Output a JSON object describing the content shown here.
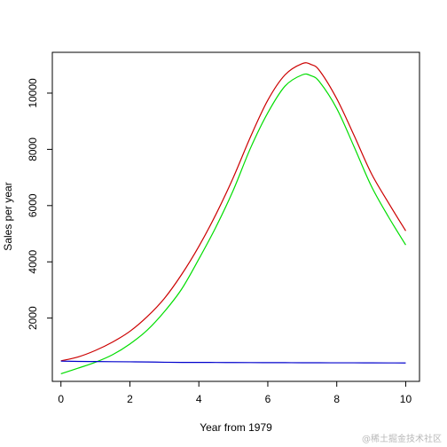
{
  "chart_data": {
    "type": "line",
    "title": "",
    "xlabel": "Year from 1979",
    "ylabel": "Sales per year",
    "xlim": [
      -0.25,
      10.4
    ],
    "ylim": [
      -250,
      11450
    ],
    "x_ticks": [
      0,
      2,
      4,
      6,
      8,
      10
    ],
    "x_tick_labels": [
      "0",
      "2",
      "4",
      "6",
      "8",
      "10"
    ],
    "y_ticks": [
      2000,
      4000,
      6000,
      8000,
      10000
    ],
    "y_tick_labels": [
      "2000",
      "4000",
      "6000",
      "8000",
      "10000"
    ],
    "grid": false,
    "legend": "none",
    "x": [
      0,
      0.5,
      1,
      1.5,
      2,
      2.5,
      3,
      3.5,
      4,
      4.5,
      5,
      5.5,
      6,
      6.5,
      7,
      7.25,
      7.5,
      8,
      8.5,
      9,
      9.5,
      10
    ],
    "series": [
      {
        "color": "#cc0000",
        "values": [
          480,
          620,
          850,
          1150,
          1530,
          2050,
          2700,
          3550,
          4550,
          5700,
          7000,
          8450,
          9750,
          10650,
          11050,
          11020,
          10800,
          9800,
          8500,
          7150,
          6100,
          5100
        ]
      },
      {
        "color": "#00dd00",
        "values": [
          20,
          220,
          430,
          700,
          1080,
          1570,
          2230,
          3030,
          4100,
          5250,
          6550,
          8050,
          9300,
          10250,
          10650,
          10620,
          10400,
          9450,
          8100,
          6700,
          5600,
          4600
        ]
      },
      {
        "color": "#0000cc",
        "values": [
          470,
          460,
          455,
          450,
          445,
          440,
          430,
          425,
          425,
          422,
          420,
          418,
          417,
          415,
          413,
          412,
          412,
          410,
          410,
          408,
          407,
          405
        ]
      }
    ]
  },
  "watermark": "@稀土掘金技术社区"
}
